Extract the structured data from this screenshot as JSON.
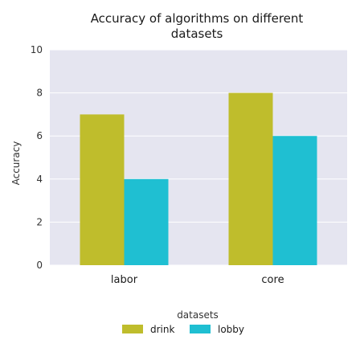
{
  "chart_data": {
    "type": "bar",
    "title": "Accuracy of algorithms on different datasets",
    "title_lines": [
      "Accuracy of algorithms on different",
      "datasets"
    ],
    "xlabel": "",
    "ylabel": "Accuracy",
    "categories": [
      "labor",
      "core"
    ],
    "series": [
      {
        "name": "drink",
        "values": [
          7,
          8
        ],
        "color": "#bfbd2c"
      },
      {
        "name": "lobby",
        "values": [
          4,
          6
        ],
        "color": "#1fbfd2"
      }
    ],
    "ylim": [
      0,
      10
    ],
    "yticks": [
      0,
      2,
      4,
      6,
      8,
      10
    ],
    "grid": true,
    "background_color": "#e5e5f0",
    "legend": {
      "title": "datasets",
      "placement": "bottom-center"
    }
  }
}
